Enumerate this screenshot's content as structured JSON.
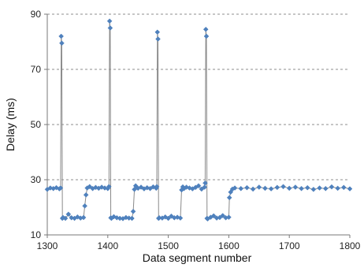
{
  "chart_data": {
    "type": "line",
    "title": "",
    "xlabel": "Data segment number",
    "ylabel": "Delay (ms)",
    "xlim": [
      1300,
      1800
    ],
    "ylim": [
      10,
      90
    ],
    "xticks": [
      1300,
      1400,
      1500,
      1600,
      1700,
      1800
    ],
    "yticks": [
      10,
      30,
      50,
      70,
      90
    ],
    "grid": "horizontal-dashed",
    "legend": "none",
    "series": [
      {
        "color": "#4f81bd",
        "x": [
          1300,
          1305,
          1310,
          1315,
          1320,
          1322,
          1323,
          1324,
          1325,
          1326,
          1330,
          1335,
          1340,
          1345,
          1350,
          1355,
          1360,
          1362,
          1364,
          1366,
          1370,
          1375,
          1380,
          1385,
          1390,
          1395,
          1400,
          1402,
          1403,
          1404,
          1405,
          1406,
          1410,
          1415,
          1420,
          1425,
          1430,
          1435,
          1440,
          1442,
          1444,
          1446,
          1450,
          1455,
          1460,
          1465,
          1470,
          1475,
          1480,
          1481,
          1482,
          1483,
          1484,
          1485,
          1490,
          1495,
          1500,
          1505,
          1510,
          1515,
          1520,
          1522,
          1524,
          1526,
          1530,
          1535,
          1540,
          1545,
          1550,
          1555,
          1560,
          1561,
          1562,
          1563,
          1564,
          1565,
          1570,
          1575,
          1580,
          1585,
          1590,
          1595,
          1600,
          1601,
          1603,
          1606,
          1610,
          1620,
          1630,
          1640,
          1650,
          1660,
          1670,
          1680,
          1690,
          1700,
          1710,
          1720,
          1730,
          1740,
          1750,
          1760,
          1770,
          1780,
          1790,
          1800
        ],
        "y": [
          26.5,
          27.0,
          26.8,
          27.1,
          26.7,
          27.0,
          82.0,
          79.5,
          16.0,
          16.3,
          16.0,
          17.5,
          16.2,
          16.0,
          16.5,
          16.1,
          16.3,
          20.5,
          24.5,
          27.0,
          27.5,
          26.8,
          27.2,
          26.9,
          27.3,
          27.0,
          26.8,
          27.5,
          87.5,
          85.0,
          16.2,
          16.0,
          16.6,
          16.2,
          16.0,
          15.9,
          16.3,
          16.1,
          16.0,
          18.5,
          26.5,
          27.8,
          26.9,
          27.3,
          26.7,
          27.1,
          26.8,
          27.4,
          26.9,
          27.5,
          83.5,
          81.0,
          16.0,
          16.2,
          16.1,
          16.5,
          16.0,
          16.8,
          16.2,
          16.4,
          16.1,
          26.3,
          27.4,
          26.8,
          27.3,
          27.0,
          26.7,
          27.2,
          27.8,
          26.6,
          27.3,
          28.8,
          84.5,
          82.0,
          16.0,
          15.8,
          16.4,
          16.9,
          16.1,
          16.3,
          17.0,
          16.2,
          16.4,
          23.5,
          25.5,
          26.6,
          27.0,
          26.8,
          27.1,
          26.6,
          27.3,
          26.9,
          26.7,
          27.2,
          27.5,
          26.9,
          27.3,
          26.8,
          27.1,
          26.5,
          27.0,
          26.8,
          27.4,
          26.9,
          27.2,
          26.7
        ]
      }
    ]
  }
}
